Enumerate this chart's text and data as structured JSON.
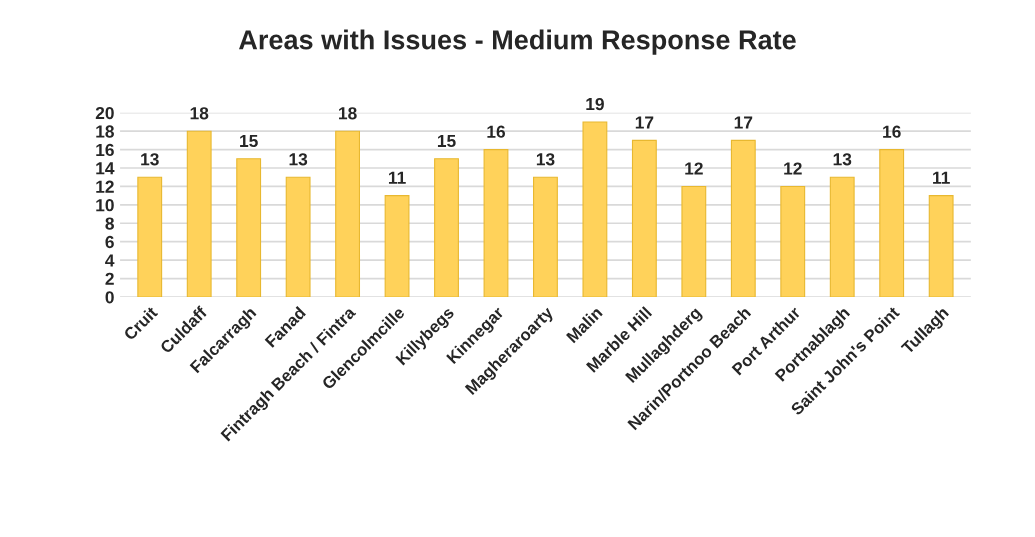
{
  "chart_data": {
    "type": "bar",
    "title": "Areas with Issues - Medium Response Rate",
    "categories": [
      "Cruit",
      "Culdaff",
      "Falcarragh",
      "Fanad",
      "Fintragh Beach / Fintra",
      "Glencolmcille",
      "Killybegs",
      "Kinnegar",
      "Magheraroarty",
      "Malin",
      "Marble Hill",
      "Mullaghderg",
      "Narin/Portnoo Beach",
      "Port Arthur",
      "Portnablagh",
      "Saint John's Point",
      "Tullagh"
    ],
    "values": [
      13,
      18,
      15,
      13,
      18,
      11,
      15,
      16,
      13,
      19,
      17,
      12,
      17,
      12,
      13,
      16,
      11
    ],
    "color": "#ffd25a",
    "ylim": [
      0,
      20
    ],
    "yticks": [
      0,
      2,
      4,
      6,
      8,
      10,
      12,
      14,
      16,
      18,
      20
    ],
    "grid": "y",
    "data_labels": true,
    "legend": false
  }
}
